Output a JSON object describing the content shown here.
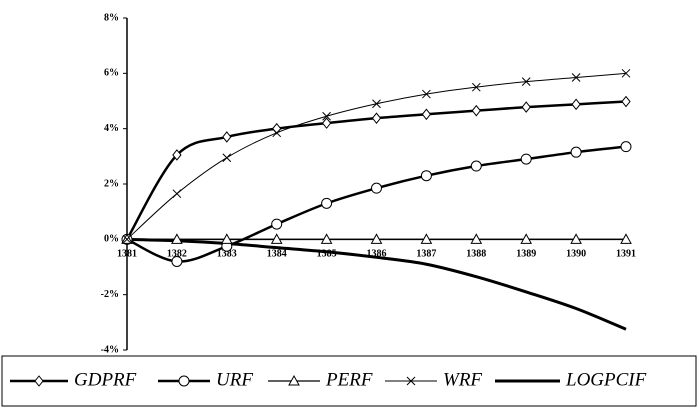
{
  "chart_data": {
    "type": "line",
    "categories": [
      "1381",
      "1382",
      "1383",
      "1384",
      "1385",
      "1386",
      "1387",
      "1388",
      "1389",
      "1390",
      "1391"
    ],
    "ylim": [
      -4,
      8
    ],
    "yticks": [
      {
        "value": -4,
        "label": "-4%"
      },
      {
        "value": -2,
        "label": "-2%"
      },
      {
        "value": 0,
        "label": "0%"
      },
      {
        "value": 2,
        "label": "2%"
      },
      {
        "value": 4,
        "label": "4%"
      },
      {
        "value": 6,
        "label": "6%"
      },
      {
        "value": 8,
        "label": "8%"
      }
    ],
    "legend": "bottom",
    "series": [
      {
        "name": "GDPRF",
        "color": "#000000",
        "marker": "diamond",
        "values": [
          0,
          3.05,
          3.7,
          4.0,
          4.2,
          4.38,
          4.52,
          4.65,
          4.78,
          4.88,
          4.98
        ]
      },
      {
        "name": "URF",
        "color": "#000000",
        "marker": "circle",
        "values": [
          0,
          -0.8,
          -0.25,
          0.55,
          1.3,
          1.85,
          2.3,
          2.65,
          2.9,
          3.15,
          3.35
        ]
      },
      {
        "name": "PERF",
        "color": "#000000",
        "marker": "triangle",
        "values": [
          0,
          0,
          0,
          0,
          0,
          0,
          0,
          0,
          0,
          0,
          0
        ]
      },
      {
        "name": "WRF",
        "color": "#000000",
        "marker": "x",
        "values": [
          0,
          1.65,
          2.95,
          3.85,
          4.45,
          4.9,
          5.25,
          5.5,
          5.7,
          5.85,
          6.0
        ]
      },
      {
        "name": "LOGPCIF",
        "color": "#000000",
        "marker": "none",
        "values": [
          0,
          -0.05,
          -0.15,
          -0.3,
          -0.45,
          -0.65,
          -0.9,
          -1.35,
          -1.9,
          -2.5,
          -3.25
        ]
      }
    ]
  }
}
